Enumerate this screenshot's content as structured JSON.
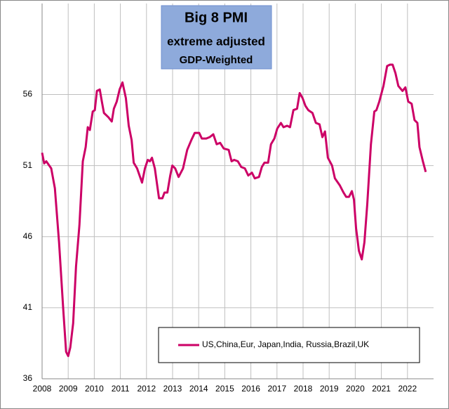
{
  "chart_data": {
    "type": "line",
    "title": "Big 8 PMI",
    "subtitle": "extreme adjusted",
    "annotation": "GDP-Weighted",
    "x": [
      2008.0,
      2008.08,
      2008.16,
      2008.35,
      2008.49,
      2008.65,
      2008.81,
      2008.92,
      2009.0,
      2009.08,
      2009.19,
      2009.3,
      2009.43,
      2009.56,
      2009.67,
      2009.75,
      2009.83,
      2009.94,
      2010.02,
      2010.1,
      2010.21,
      2010.29,
      2010.37,
      2010.54,
      2010.67,
      2010.75,
      2010.86,
      2010.97,
      2011.08,
      2011.21,
      2011.32,
      2011.43,
      2011.51,
      2011.64,
      2011.83,
      2011.94,
      2012.05,
      2012.13,
      2012.21,
      2012.32,
      2012.48,
      2012.61,
      2012.69,
      2012.8,
      2012.91,
      2012.99,
      2013.1,
      2013.23,
      2013.4,
      2013.56,
      2013.72,
      2013.85,
      2014.02,
      2014.12,
      2014.29,
      2014.42,
      2014.56,
      2014.69,
      2014.82,
      2014.96,
      2015.15,
      2015.26,
      2015.36,
      2015.5,
      2015.63,
      2015.77,
      2015.9,
      2016.04,
      2016.15,
      2016.31,
      2016.42,
      2016.52,
      2016.66,
      2016.77,
      2016.9,
      2017.01,
      2017.15,
      2017.25,
      2017.39,
      2017.5,
      2017.63,
      2017.77,
      2017.87,
      2017.98,
      2018.09,
      2018.2,
      2018.36,
      2018.49,
      2018.63,
      2018.74,
      2018.84,
      2018.95,
      2019.11,
      2019.22,
      2019.41,
      2019.55,
      2019.65,
      2019.76,
      2019.87,
      2019.95,
      2020.03,
      2020.14,
      2020.25,
      2020.35,
      2020.46,
      2020.6,
      2020.73,
      2020.81,
      2020.92,
      2021.08,
      2021.22,
      2021.33,
      2021.43,
      2021.54,
      2021.65,
      2021.81,
      2021.92,
      2022.03,
      2022.16,
      2022.27,
      2022.38,
      2022.46,
      2022.59,
      2022.7
    ],
    "series": [
      {
        "name": "US,China,Eur, Japan,India, Russia,Brazil,UK",
        "color": "#cc0066",
        "values": [
          51.9,
          51.15,
          51.3,
          50.8,
          49.4,
          45.6,
          40.9,
          37.9,
          37.6,
          38.2,
          39.9,
          43.9,
          46.8,
          51.3,
          52.3,
          53.7,
          53.5,
          54.8,
          54.9,
          56.25,
          56.35,
          55.5,
          54.7,
          54.4,
          54.1,
          55.0,
          55.5,
          56.35,
          56.85,
          55.75,
          53.8,
          52.8,
          51.2,
          50.8,
          49.8,
          50.8,
          51.4,
          51.3,
          51.55,
          50.8,
          48.7,
          48.7,
          49.1,
          49.1,
          50.3,
          51.0,
          50.8,
          50.2,
          50.8,
          52.1,
          52.8,
          53.3,
          53.3,
          52.9,
          52.9,
          53.0,
          53.2,
          52.5,
          52.6,
          52.2,
          52.1,
          51.3,
          51.4,
          51.3,
          50.9,
          50.8,
          50.3,
          50.5,
          50.1,
          50.2,
          50.9,
          51.2,
          51.2,
          52.5,
          52.9,
          53.6,
          54.0,
          53.7,
          53.8,
          53.7,
          54.9,
          55.0,
          56.1,
          55.75,
          55.2,
          54.9,
          54.7,
          54.0,
          53.9,
          53.0,
          53.4,
          51.55,
          51.0,
          50.1,
          49.6,
          49.1,
          48.8,
          48.8,
          49.2,
          48.6,
          46.6,
          45.0,
          44.4,
          45.6,
          48.3,
          52.5,
          54.8,
          54.9,
          55.5,
          56.6,
          58.0,
          58.1,
          58.1,
          57.5,
          56.6,
          56.25,
          56.5,
          55.5,
          55.35,
          54.2,
          54.0,
          52.3,
          51.3,
          50.55
        ]
      }
    ],
    "xlim": [
      2008,
      2023
    ],
    "xticks": [
      2008,
      2009,
      2010,
      2011,
      2012,
      2013,
      2014,
      2015,
      2016,
      2017,
      2018,
      2019,
      2020,
      2021,
      2022
    ],
    "ylim": [
      36,
      62.4
    ],
    "yticks": [
      36,
      41,
      46,
      51,
      56
    ],
    "grid": true,
    "legend": "bottom-right"
  }
}
